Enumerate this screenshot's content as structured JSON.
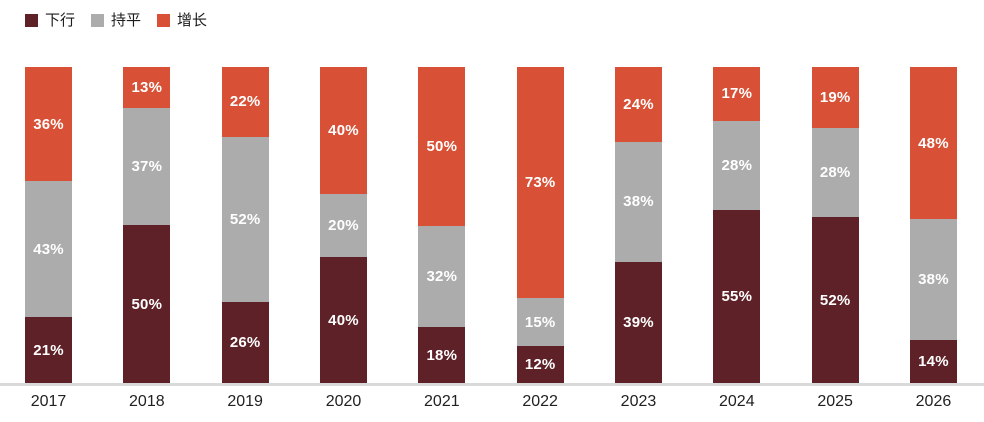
{
  "chart_data": {
    "type": "bar",
    "subtype": "stacked-percentage-column",
    "title": "",
    "xlabel": "",
    "ylabel": "",
    "grid": false,
    "legend_position": "top-left",
    "value_suffix": "%",
    "categories": [
      "2017",
      "2018",
      "2019",
      "2020",
      "2021",
      "2022",
      "2023",
      "2024",
      "2025",
      "2026"
    ],
    "stack_order_bottom_to_top": [
      "下行",
      "持平",
      "增长"
    ],
    "series": [
      {
        "name": "下行",
        "color": "#5E2127",
        "values": [
          21,
          50,
          26,
          40,
          18,
          12,
          39,
          55,
          52,
          14
        ]
      },
      {
        "name": "持平",
        "color": "#ACACAC",
        "values": [
          43,
          37,
          52,
          20,
          32,
          15,
          38,
          28,
          28,
          38
        ]
      },
      {
        "name": "增长",
        "color": "#D85035",
        "values": [
          36,
          13,
          22,
          40,
          50,
          73,
          24,
          17,
          19,
          48
        ]
      }
    ],
    "colors": {
      "baseline": "#d9d9d9",
      "segment_label": "#ffffff",
      "axis_label": "#212121",
      "background": "#ffffff"
    }
  }
}
